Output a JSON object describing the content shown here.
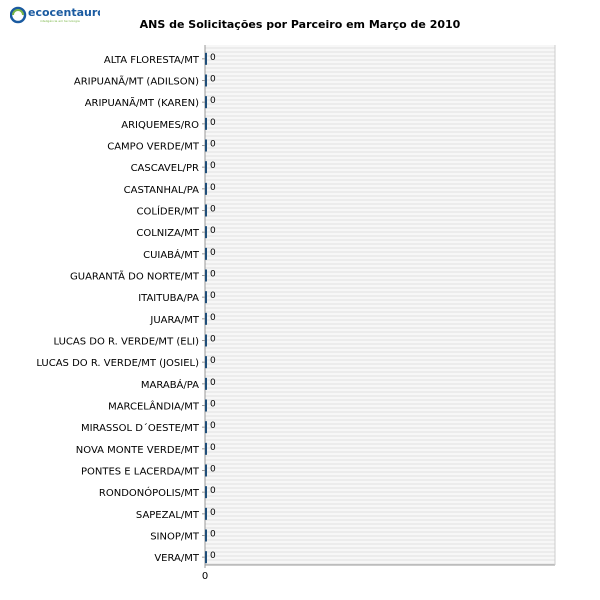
{
  "logo": {
    "name": "ecocentauro",
    "tagline": "inteligência em tecnologia",
    "color": "#1a5aa0",
    "accent_color": "#7ab648"
  },
  "chart_data": {
    "type": "bar",
    "orientation": "horizontal",
    "title": "ANS de Solicitações por Parceiro em Março de 2010",
    "xlabel": "",
    "ylabel": "",
    "categories": [
      "ALTA FLORESTA/MT",
      "ARIPUANÃ/MT (ADILSON)",
      "ARIPUANÃ/MT (KAREN)",
      "ARIQUEMES/RO",
      "CAMPO VERDE/MT",
      "CASCAVEL/PR",
      "CASTANHAL/PA",
      "COLÍDER/MT",
      "COLNIZA/MT",
      "CUIABÁ/MT",
      "GUARANTÃ DO NORTE/MT",
      "ITAITUBA/PA",
      "JUARA/MT",
      "LUCAS DO R. VERDE/MT (ELI)",
      "LUCAS DO R. VERDE/MT (JOSIEL)",
      "MARABÁ/PA",
      "MARCELÂNDIA/MT",
      "MIRASSOL D´OESTE/MT",
      "NOVA MONTE VERDE/MT",
      "PONTES E LACERDA/MT",
      "RONDONÓPOLIS/MT",
      "SAPEZAL/MT",
      "SINOP/MT",
      "VERA/MT"
    ],
    "values": [
      0,
      0,
      0,
      0,
      0,
      0,
      0,
      0,
      0,
      0,
      0,
      0,
      0,
      0,
      0,
      0,
      0,
      0,
      0,
      0,
      0,
      0,
      0,
      0
    ],
    "x_ticks": [
      "0"
    ],
    "xlim": [
      0,
      1
    ],
    "grid": true,
    "bar_color": "#1f4e79",
    "grid_color": "#d9d9d9"
  }
}
